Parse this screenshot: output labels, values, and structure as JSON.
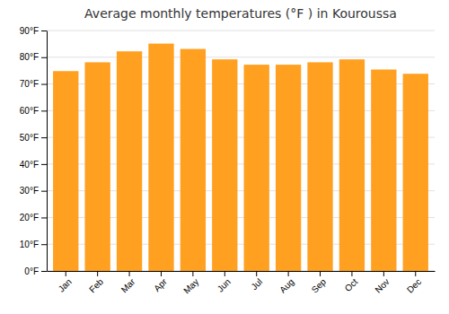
{
  "chart_data": {
    "type": "bar",
    "title": "Average monthly temperatures (°F ) in Kouroussa",
    "categories": [
      "Jan",
      "Feb",
      "Mar",
      "Apr",
      "May",
      "Jun",
      "Jul",
      "Aug",
      "Sep",
      "Oct",
      "Nov",
      "Dec"
    ],
    "values": [
      74.8,
      78.1,
      82.2,
      85.1,
      83.1,
      79.2,
      77.2,
      77.2,
      78.1,
      79.2,
      75.4,
      73.8
    ],
    "color": "#FFA020",
    "ylim": [
      0,
      90
    ],
    "yticks": [
      {
        "value": 0,
        "label": "0°F"
      },
      {
        "value": 10,
        "label": "10°F"
      },
      {
        "value": 20,
        "label": "20°F"
      },
      {
        "value": 30,
        "label": "30°F"
      },
      {
        "value": 40,
        "label": "40°F"
      },
      {
        "value": 50,
        "label": "50°F"
      },
      {
        "value": 60,
        "label": "60°F"
      },
      {
        "value": 70,
        "label": "70°F"
      },
      {
        "value": 80,
        "label": "80°F"
      },
      {
        "value": 90,
        "label": "90°F"
      }
    ],
    "grid": true
  }
}
